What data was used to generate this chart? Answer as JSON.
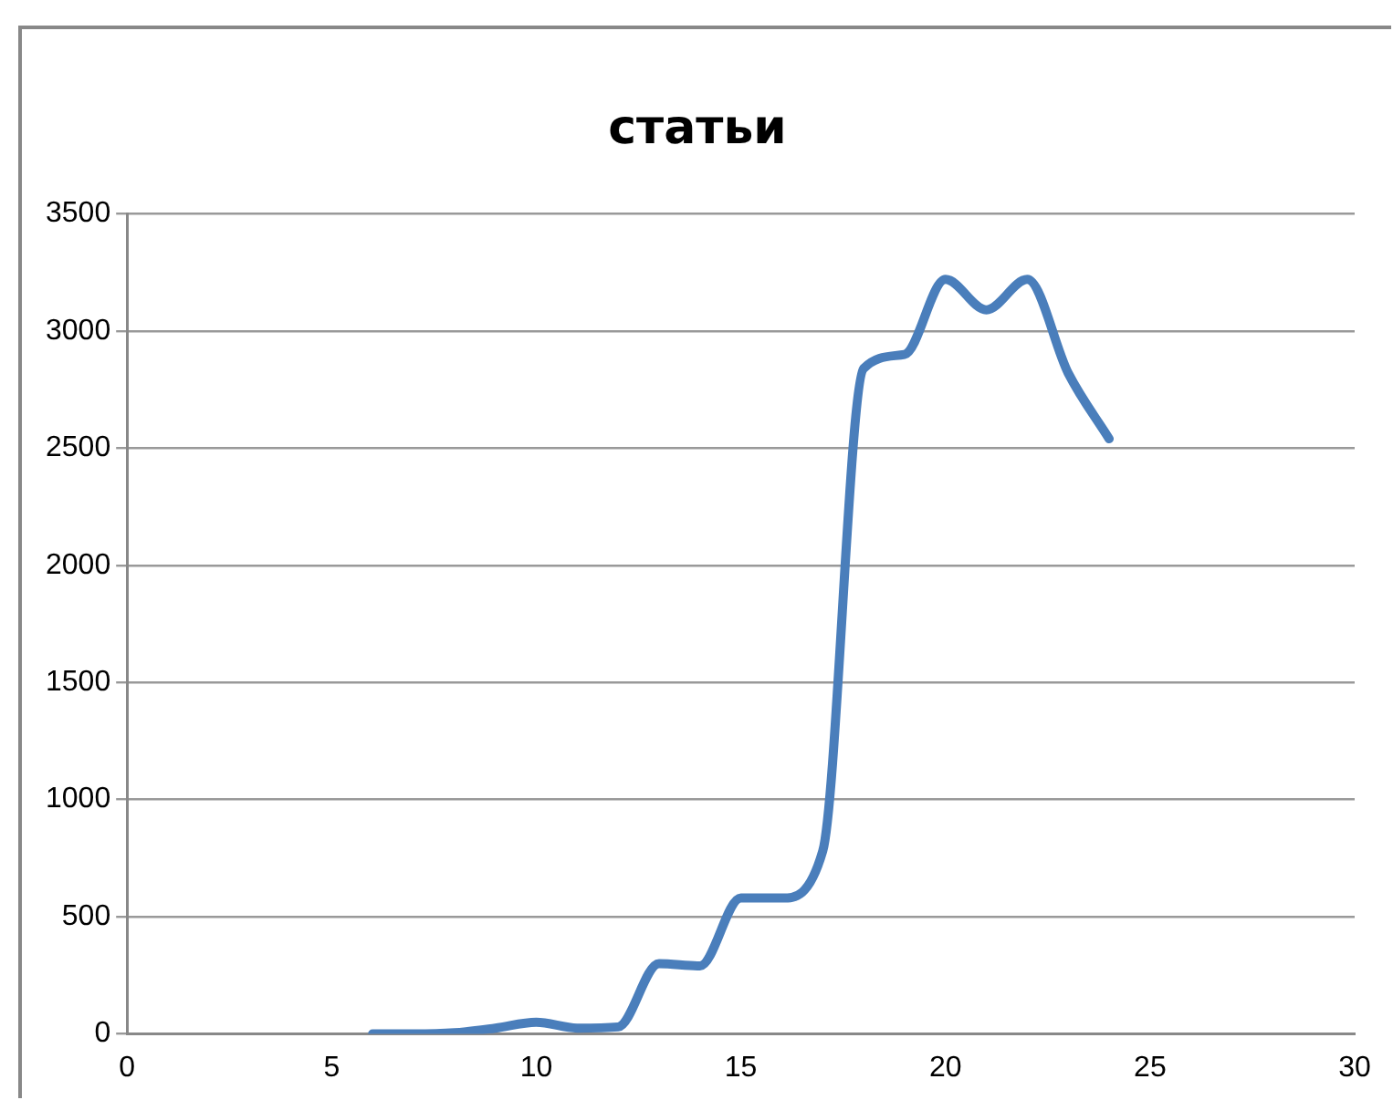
{
  "chart_data": {
    "type": "line",
    "title": "статьи",
    "x": [
      6,
      7,
      8,
      9,
      10,
      11,
      12,
      13,
      14,
      15,
      16,
      17,
      18,
      19,
      20,
      21,
      22,
      23,
      24
    ],
    "series": [
      {
        "color": "#4a7ebb",
        "values": [
          0,
          0,
          5,
          25,
          50,
          25,
          30,
          300,
          290,
          580,
          580,
          780,
          2840,
          2900,
          3220,
          3090,
          3220,
          2820,
          2540
        ]
      }
    ],
    "xlim": [
      0,
      30
    ],
    "xticks": [
      0,
      5,
      10,
      15,
      20,
      25,
      30
    ],
    "ylim": [
      0,
      3500
    ],
    "yticks": [
      0,
      500,
      1000,
      1500,
      2000,
      2500,
      3000,
      3500
    ],
    "grid": "y",
    "legend": false,
    "marker": "none",
    "line_style": "solid"
  }
}
